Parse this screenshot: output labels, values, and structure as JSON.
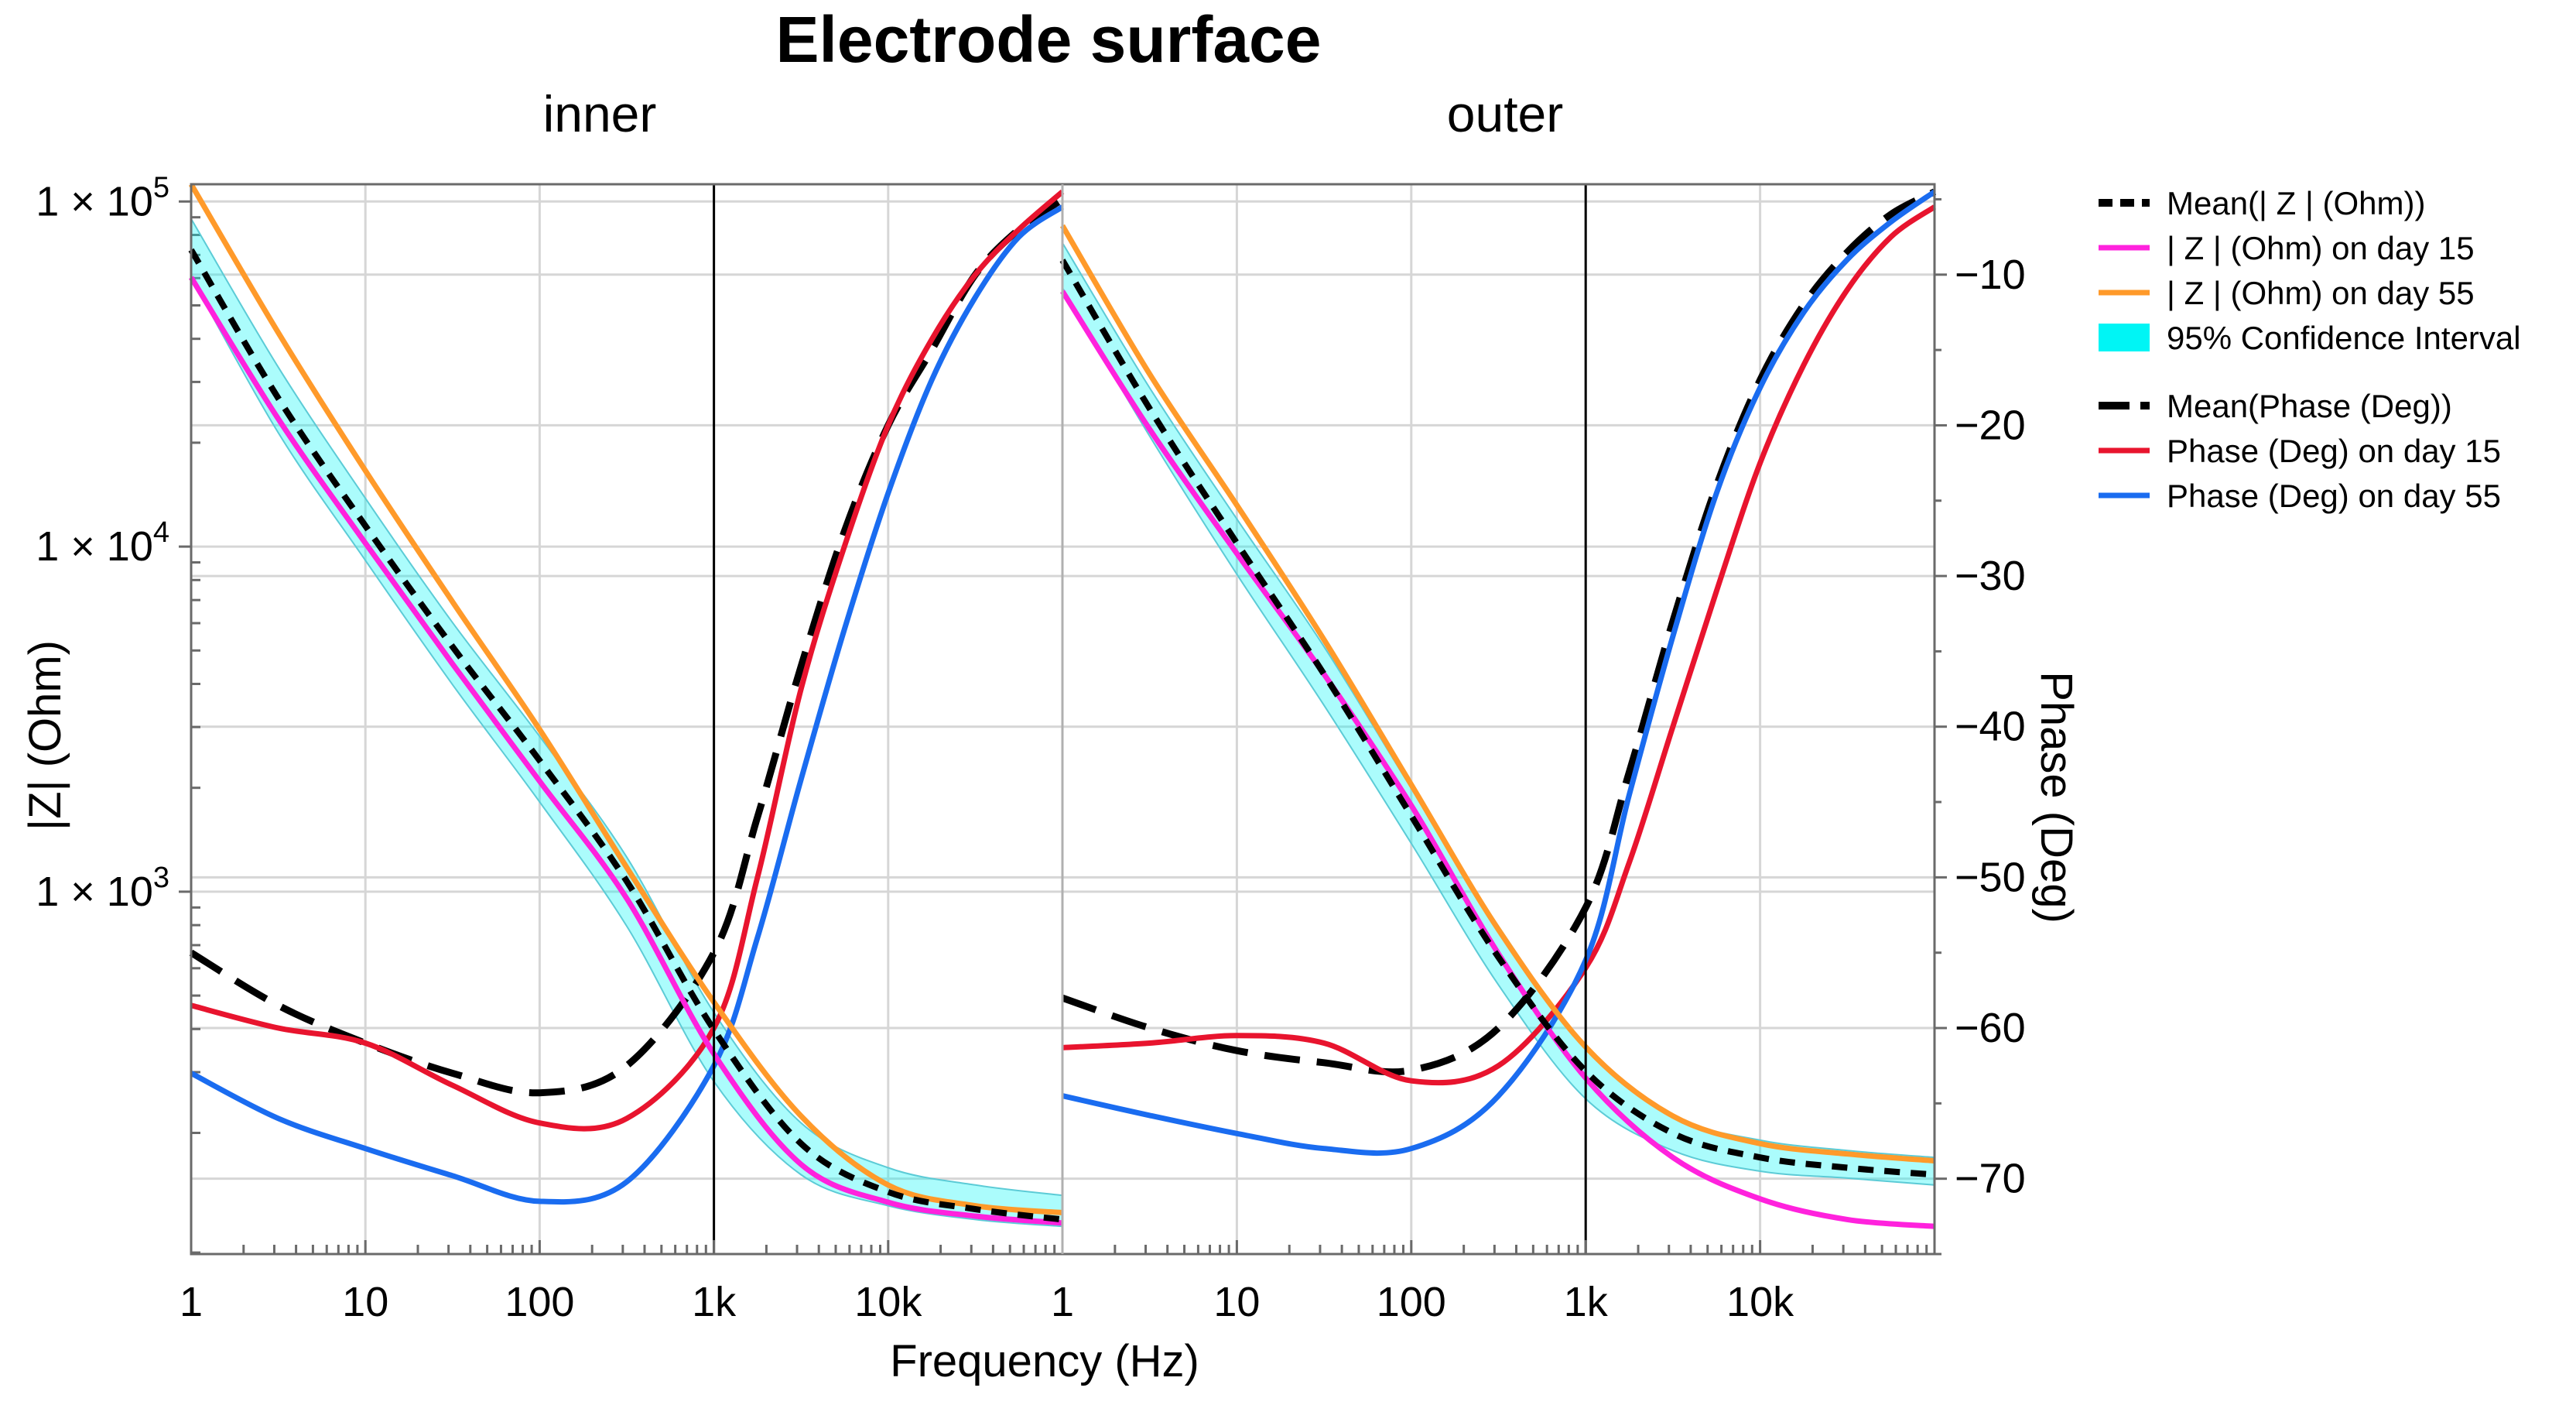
{
  "chart_data": {
    "type": "line",
    "title": "Electrode surface",
    "xlabel": "Frequency (Hz)",
    "ylabel_left": "|Z| (Ohm)",
    "ylabel_right": "Phase (Deg)",
    "x_scale": "log",
    "xlim_log10": [
      0,
      5
    ],
    "ylim_left_log10": [
      1.95,
      5.05
    ],
    "ylim_right": [
      -75,
      -4
    ],
    "x_tick_labels": [
      "1",
      "10",
      "100",
      "1k",
      "10k"
    ],
    "left_tick_labels": [
      {
        "base": "1 × 10",
        "exp": "5",
        "log10": 5
      },
      {
        "base": "1 × 10",
        "exp": "4",
        "log10": 4
      },
      {
        "base": "1 × 10",
        "exp": "3",
        "log10": 3
      }
    ],
    "right_tick_labels": [
      "−10",
      "−20",
      "−30",
      "−40",
      "−50",
      "−60",
      "−70"
    ],
    "right_tick_values": [
      -10,
      -20,
      -30,
      -40,
      -50,
      -60,
      -70
    ],
    "x_grid_values_log10": [
      1,
      2,
      3,
      4
    ],
    "vline_log10": 3,
    "grid": true,
    "legend_position": "right",
    "legend": [
      {
        "label": "Mean(| Z | (Ohm))",
        "color": "#000000",
        "style": "dashed"
      },
      {
        "label": "| Z | (Ohm) on day 15",
        "color": "#ff22dd",
        "style": "solid"
      },
      {
        "label": "| Z | (Ohm) on day 55",
        "color": "#ff9a2a",
        "style": "solid"
      },
      {
        "label": "95% Confidence Interval",
        "color": "#00f5f5",
        "style": "band"
      },
      {
        "label": "Mean(Phase (Deg))",
        "color": "#000000",
        "style": "longdash"
      },
      {
        "label": "Phase (Deg) on day 15",
        "color": "#e8142e",
        "style": "solid"
      },
      {
        "label": "Phase (Deg) on day 55",
        "color": "#1a6cf0",
        "style": "solid"
      }
    ],
    "panels": [
      {
        "name": "inner",
        "label": "inner",
        "x_log10": [
          0,
          0.5,
          1,
          1.5,
          2,
          2.5,
          3,
          3.5,
          4,
          4.5,
          5
        ],
        "mag_mean_log10": [
          4.86,
          4.43,
          4.06,
          3.71,
          3.38,
          3.03,
          2.6,
          2.27,
          2.13,
          2.08,
          2.05
        ],
        "mag_ci_upper_log10": [
          4.95,
          4.52,
          4.14,
          3.78,
          3.45,
          3.1,
          2.65,
          2.33,
          2.2,
          2.15,
          2.12
        ],
        "mag_ci_lower_log10": [
          4.78,
          4.33,
          3.96,
          3.6,
          3.26,
          2.9,
          2.45,
          2.18,
          2.09,
          2.05,
          2.03
        ],
        "mag_day15_log10": [
          4.78,
          4.37,
          4.01,
          3.66,
          3.32,
          2.98,
          2.53,
          2.21,
          2.1,
          2.06,
          2.04
        ],
        "mag_day55_log10": [
          5.05,
          4.62,
          4.22,
          3.84,
          3.47,
          3.07,
          2.68,
          2.35,
          2.15,
          2.09,
          2.07
        ],
        "phase_x_log10": [
          0,
          0.5,
          1,
          1.5,
          2,
          2.5,
          3,
          3.25,
          3.5,
          3.75,
          4,
          4.25,
          4.5,
          4.75,
          5
        ],
        "phase_mean": [
          -55,
          -58.5,
          -61,
          -63,
          -64.3,
          -62.5,
          -55,
          -46,
          -36,
          -27,
          -20,
          -15,
          -10,
          -7,
          -5
        ],
        "phase_day15": [
          -58.5,
          -60,
          -61,
          -63.8,
          -66.3,
          -66,
          -60,
          -50,
          -37.5,
          -28,
          -20,
          -14.3,
          -10,
          -7,
          -4.5
        ],
        "phase_day55": [
          -63,
          -66,
          -68,
          -69.8,
          -71.5,
          -70.2,
          -62.5,
          -54,
          -43.5,
          -33.5,
          -24.5,
          -17,
          -11.5,
          -7.5,
          -5.5
        ]
      },
      {
        "name": "outer",
        "label": "outer",
        "x_log10": [
          0,
          0.5,
          1,
          1.5,
          2,
          2.5,
          3,
          3.5,
          4,
          4.5,
          5
        ],
        "mag_mean_log10": [
          4.83,
          4.4,
          4.01,
          3.63,
          3.22,
          2.81,
          2.48,
          2.3,
          2.23,
          2.2,
          2.18
        ],
        "mag_ci_upper_log10": [
          4.88,
          4.46,
          4.08,
          3.71,
          3.3,
          2.9,
          2.55,
          2.35,
          2.28,
          2.25,
          2.23
        ],
        "mag_ci_lower_log10": [
          4.75,
          4.32,
          3.92,
          3.54,
          3.14,
          2.73,
          2.4,
          2.25,
          2.19,
          2.17,
          2.15
        ],
        "mag_day15_log10": [
          4.74,
          4.34,
          3.98,
          3.63,
          3.25,
          2.82,
          2.46,
          2.23,
          2.11,
          2.05,
          2.03
        ],
        "mag_day55_log10": [
          4.93,
          4.5,
          4.12,
          3.73,
          3.31,
          2.89,
          2.55,
          2.35,
          2.27,
          2.24,
          2.22
        ],
        "phase_x_log10": [
          0,
          0.5,
          1,
          1.5,
          2,
          2.5,
          3,
          3.25,
          3.5,
          3.75,
          4,
          4.25,
          4.5,
          4.75,
          5
        ],
        "phase_mean": [
          -58,
          -60,
          -61.5,
          -62.3,
          -62.8,
          -60,
          -52,
          -43,
          -33,
          -24,
          -17,
          -12,
          -8.5,
          -6,
          -4.5
        ],
        "phase_day15": [
          -61.3,
          -61,
          -60.5,
          -61,
          -63.5,
          -62.5,
          -56,
          -49,
          -40,
          -31,
          -22.5,
          -16,
          -11,
          -7.5,
          -5.5
        ],
        "phase_day55": [
          -64.5,
          -65.8,
          -67,
          -68,
          -68,
          -64.5,
          -55.5,
          -44.5,
          -34,
          -24.5,
          -17.5,
          -12.5,
          -9,
          -6.5,
          -4.5
        ]
      }
    ]
  }
}
